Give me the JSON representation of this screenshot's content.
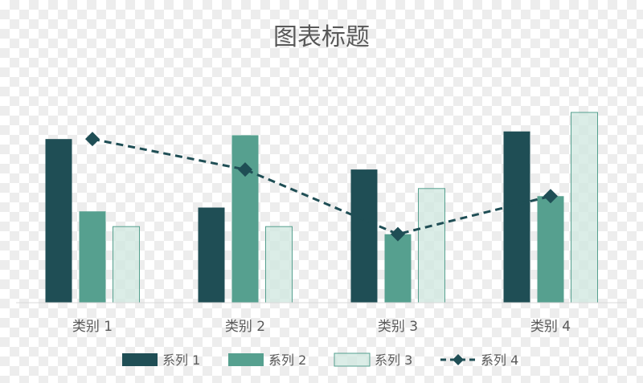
{
  "chart_data": {
    "type": "bar",
    "title": "图表标题",
    "categories": [
      "类别 1",
      "类别 2",
      "类别 3",
      "类别 4"
    ],
    "series": [
      {
        "name": "系列 1",
        "kind": "bar",
        "color": "#1f4e55",
        "values": [
          4.3,
          2.5,
          3.5,
          4.5
        ]
      },
      {
        "name": "系列 2",
        "kind": "bar",
        "color": "#56a08f",
        "values": [
          2.4,
          4.4,
          1.8,
          2.8
        ]
      },
      {
        "name": "系列 3",
        "kind": "bar",
        "color": "#cfe7df",
        "stroke": "#56a08f",
        "values": [
          2.0,
          2.0,
          3.0,
          5.0
        ]
      },
      {
        "name": "系列 4",
        "kind": "line",
        "color": "#1f4e55",
        "line_style": "dashed",
        "marker": "diamond",
        "values": [
          4.3,
          3.5,
          1.8,
          2.8
        ]
      }
    ],
    "ylim": [
      0,
      5.0
    ],
    "grid": false,
    "legend_position": "bottom"
  }
}
